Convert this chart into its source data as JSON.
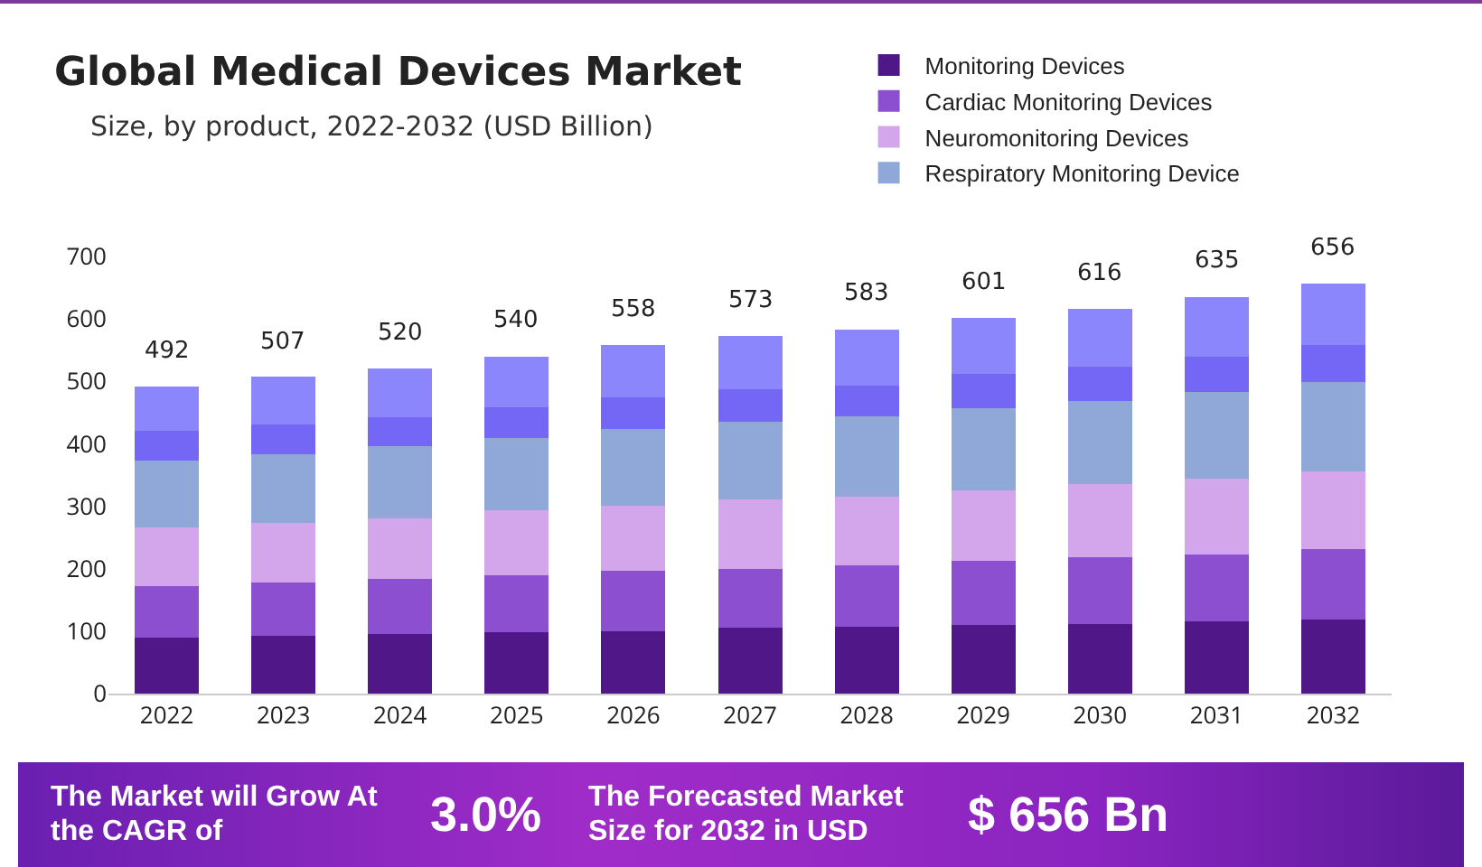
{
  "chart_data": {
    "type": "bar",
    "title": "Global Medical Devices Market",
    "subtitle": "Size, by product, 2022-2032 (USD Billion)",
    "categories": [
      "2022",
      "2023",
      "2024",
      "2025",
      "2026",
      "2027",
      "2028",
      "2029",
      "2030",
      "2031",
      "2032"
    ],
    "stacked": true,
    "series": [
      {
        "name": "Monitoring Devices",
        "color": "#4f1787",
        "values": [
          89,
          93,
          95,
          98,
          100,
          105,
          107,
          110,
          112,
          115,
          119
        ]
      },
      {
        "name": "Cardiac Monitoring Devices",
        "color": "#8b4fcf",
        "values": [
          83,
          85,
          89,
          91,
          96,
          95,
          98,
          102,
          106,
          108,
          112
        ]
      },
      {
        "name": "Neuromonitoring Devices",
        "color": "#d3a6ec",
        "values": [
          94,
          95,
          97,
          104,
          105,
          111,
          110,
          113,
          117,
          121,
          125
        ]
      },
      {
        "name": "Respiratory Monitoring Device",
        "color": "#8fa8d8",
        "values": [
          107,
          111,
          115,
          116,
          123,
          125,
          129,
          132,
          133,
          139,
          143
        ]
      },
      {
        "color": "#7467f5",
        "values": [
          48,
          47,
          46,
          50,
          51,
          51,
          49,
          55,
          56,
          57,
          60
        ]
      },
      {
        "color": "#8b86fb",
        "values": [
          71,
          76,
          78,
          81,
          83,
          86,
          90,
          89,
          92,
          95,
          97
        ]
      }
    ],
    "totals": [
      "492",
      "507",
      "520",
      "540",
      "558",
      "573",
      "583",
      "601",
      "616",
      "635",
      "656"
    ],
    "ylim": [
      0,
      700
    ],
    "yticks": [
      0,
      100,
      200,
      300,
      400,
      500,
      600,
      700
    ],
    "grid": false,
    "legend": "top right",
    "annotations": [
      "The Market will Grow At the CAGR of",
      "3.0%",
      "The Forecasted Market Size for 2032 in USD",
      "$ 656 Bn"
    ]
  }
}
